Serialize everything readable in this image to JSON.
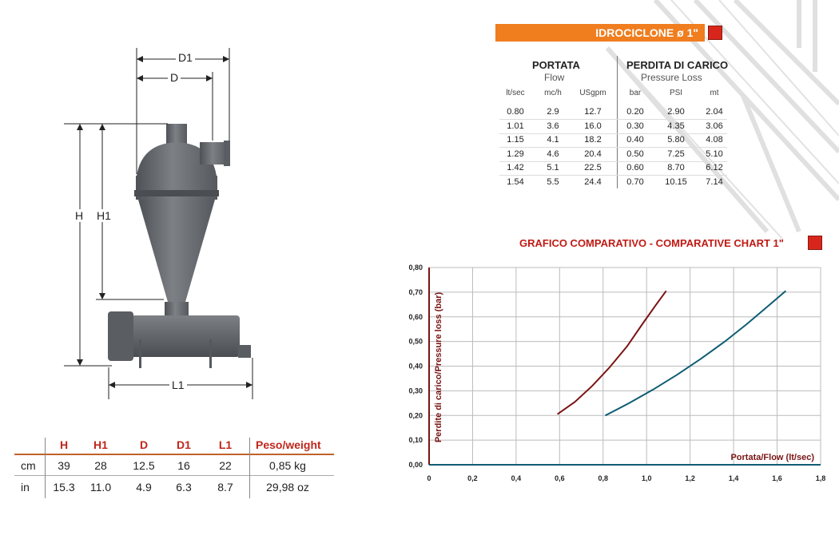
{
  "product_title": "IDROCICLONE ø 1\"",
  "drawing": {
    "dim_labels": [
      "D1",
      "D",
      "H",
      "H1",
      "L1"
    ]
  },
  "flow_table": {
    "group1_title": "PORTATA",
    "group1_sub": "Flow",
    "group2_title": "PERDITA DI CARICO",
    "group2_sub": "Pressure Loss",
    "columns": [
      "lt/sec",
      "mc/h",
      "USgpm",
      "bar",
      "PSI",
      "mt"
    ],
    "rows": [
      [
        "0.80",
        "2.9",
        "12.7",
        "0.20",
        "2.90",
        "2.04"
      ],
      [
        "1.01",
        "3.6",
        "16.0",
        "0.30",
        "4.35",
        "3.06"
      ],
      [
        "1.15",
        "4.1",
        "18.2",
        "0.40",
        "5.80",
        "4.08"
      ],
      [
        "1.29",
        "4.6",
        "20.4",
        "0.50",
        "7.25",
        "5.10"
      ],
      [
        "1.42",
        "5.1",
        "22.5",
        "0.60",
        "8.70",
        "6.12"
      ],
      [
        "1.54",
        "5.5",
        "24.4",
        "0.70",
        "10.15",
        "7.14"
      ]
    ]
  },
  "chart_title": "GRAFICO COMPARATIVO - COMPARATIVE CHART 1\"",
  "chart_data": {
    "type": "line",
    "xlabel": "Portata/Flow (lt/sec)",
    "ylabel": "Perdite di carico/Pressure loss (bar)",
    "xlim": [
      0,
      1.8
    ],
    "ylim": [
      0,
      0.8
    ],
    "x_ticks": [
      "0",
      "0,2",
      "0,4",
      "0,6",
      "0,8",
      "1,0",
      "1,2",
      "1,4",
      "1,6",
      "1,8"
    ],
    "y_ticks": [
      "0,00",
      "0,10",
      "0,20",
      "0,30",
      "0,40",
      "0,50",
      "0,60",
      "0,70",
      "0,80"
    ],
    "grid": true,
    "series": [
      {
        "color": "#7a1414",
        "points": [
          [
            0.59,
            0.205
          ],
          [
            0.67,
            0.255
          ],
          [
            0.75,
            0.32
          ],
          [
            0.83,
            0.395
          ],
          [
            0.91,
            0.48
          ],
          [
            0.98,
            0.57
          ],
          [
            1.04,
            0.645
          ],
          [
            1.09,
            0.705
          ]
        ]
      },
      {
        "color": "#0e5c73",
        "points": [
          [
            0.81,
            0.2
          ],
          [
            0.92,
            0.25
          ],
          [
            1.03,
            0.305
          ],
          [
            1.14,
            0.365
          ],
          [
            1.25,
            0.43
          ],
          [
            1.36,
            0.5
          ],
          [
            1.46,
            0.57
          ],
          [
            1.56,
            0.645
          ],
          [
            1.64,
            0.705
          ]
        ]
      }
    ]
  },
  "dim_table": {
    "headers": [
      "H",
      "H1",
      "D",
      "D1",
      "L1",
      "Peso/weight"
    ],
    "rows": [
      {
        "unit": "cm",
        "values": [
          "39",
          "28",
          "12.5",
          "16",
          "22",
          "0,85 kg"
        ]
      },
      {
        "unit": "in",
        "values": [
          "15.3",
          "11.0",
          "4.9",
          "6.3",
          "8.7",
          "29,98 oz"
        ]
      }
    ]
  },
  "colors": {
    "accent_orange": "#f07d1e",
    "accent_red": "#d8261c",
    "body_gray": "#6b6e72"
  }
}
